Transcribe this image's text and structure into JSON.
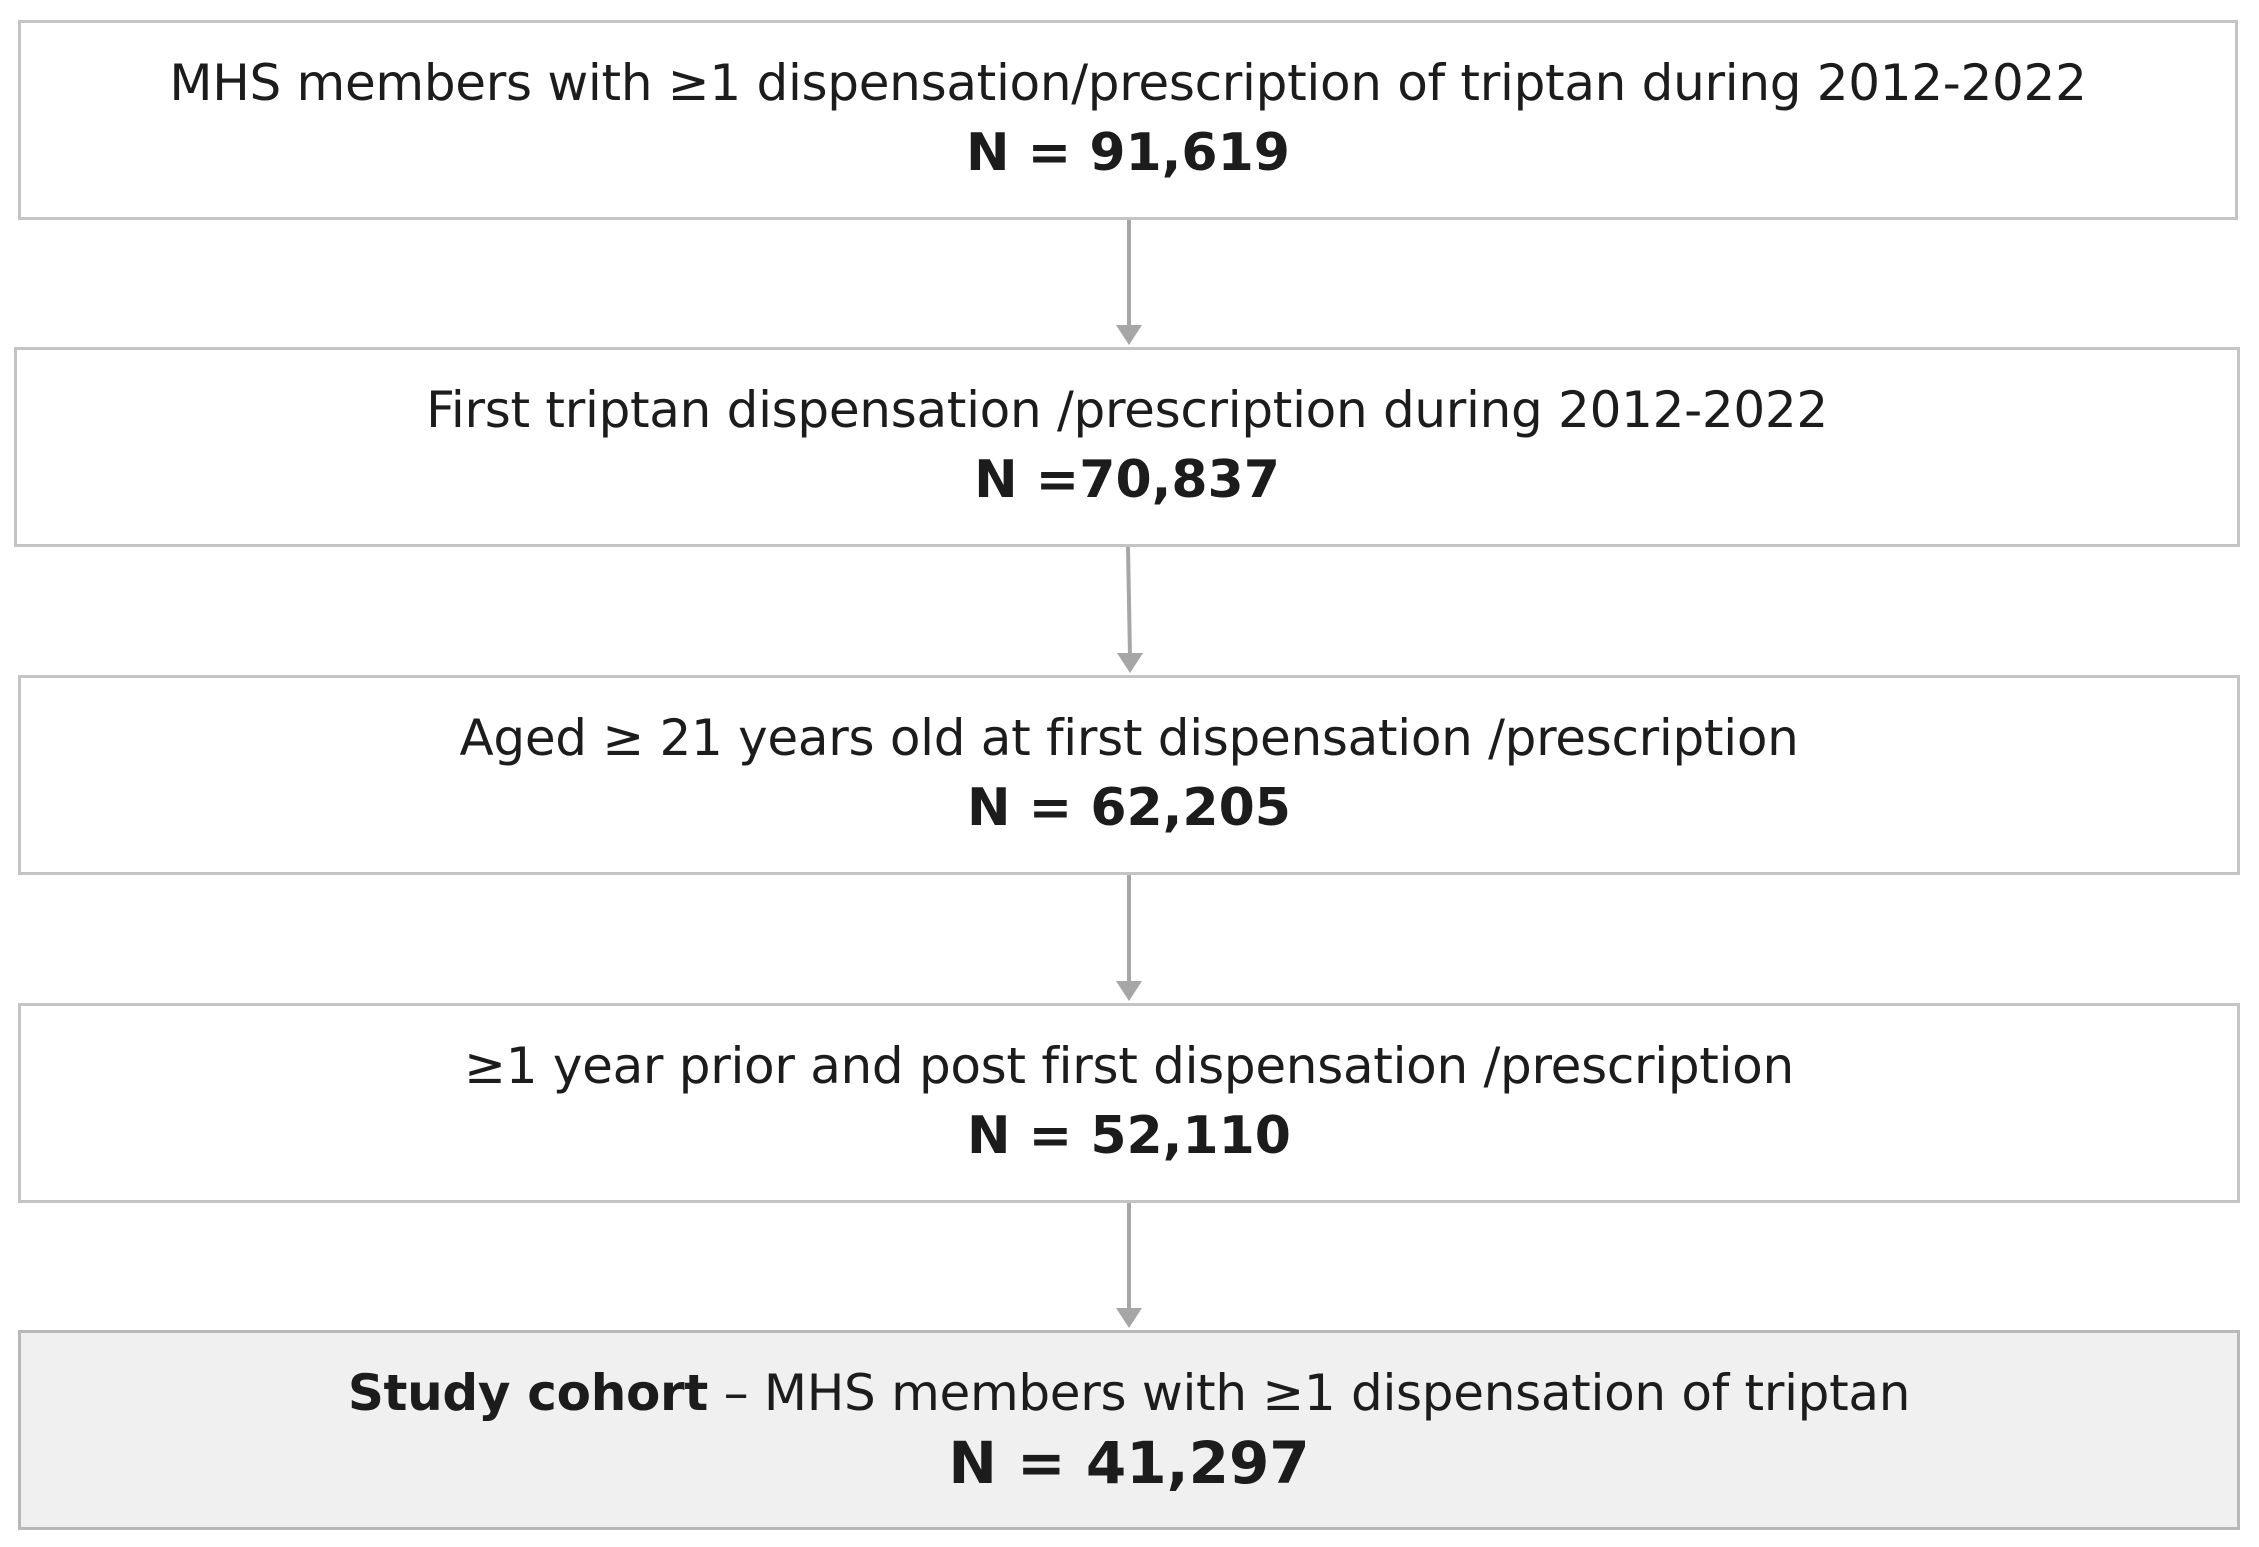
{
  "flowchart": {
    "steps": [
      {
        "text": "MHS members with ≥1 dispensation/prescription of triptan during 2012-2022",
        "count": "N = 91,619"
      },
      {
        "text": "First triptan dispensation /prescription during 2012-2022",
        "count": "N =70,837"
      },
      {
        "text": "Aged ≥ 21 years old at first dispensation /prescription",
        "count": "N = 62,205"
      },
      {
        "text": "≥1 year prior and post first dispensation /prescription",
        "count": "N = 52,110"
      },
      {
        "lead": "Study cohort",
        "text": " – MHS members with ≥1 dispensation of triptan",
        "count": "N = 41,297"
      }
    ]
  },
  "colors": {
    "box_border": "#c4c4c4",
    "final_box_fill": "#f0f0f0",
    "arrow": "#a6a6a6",
    "text": "#1c1c1c"
  }
}
